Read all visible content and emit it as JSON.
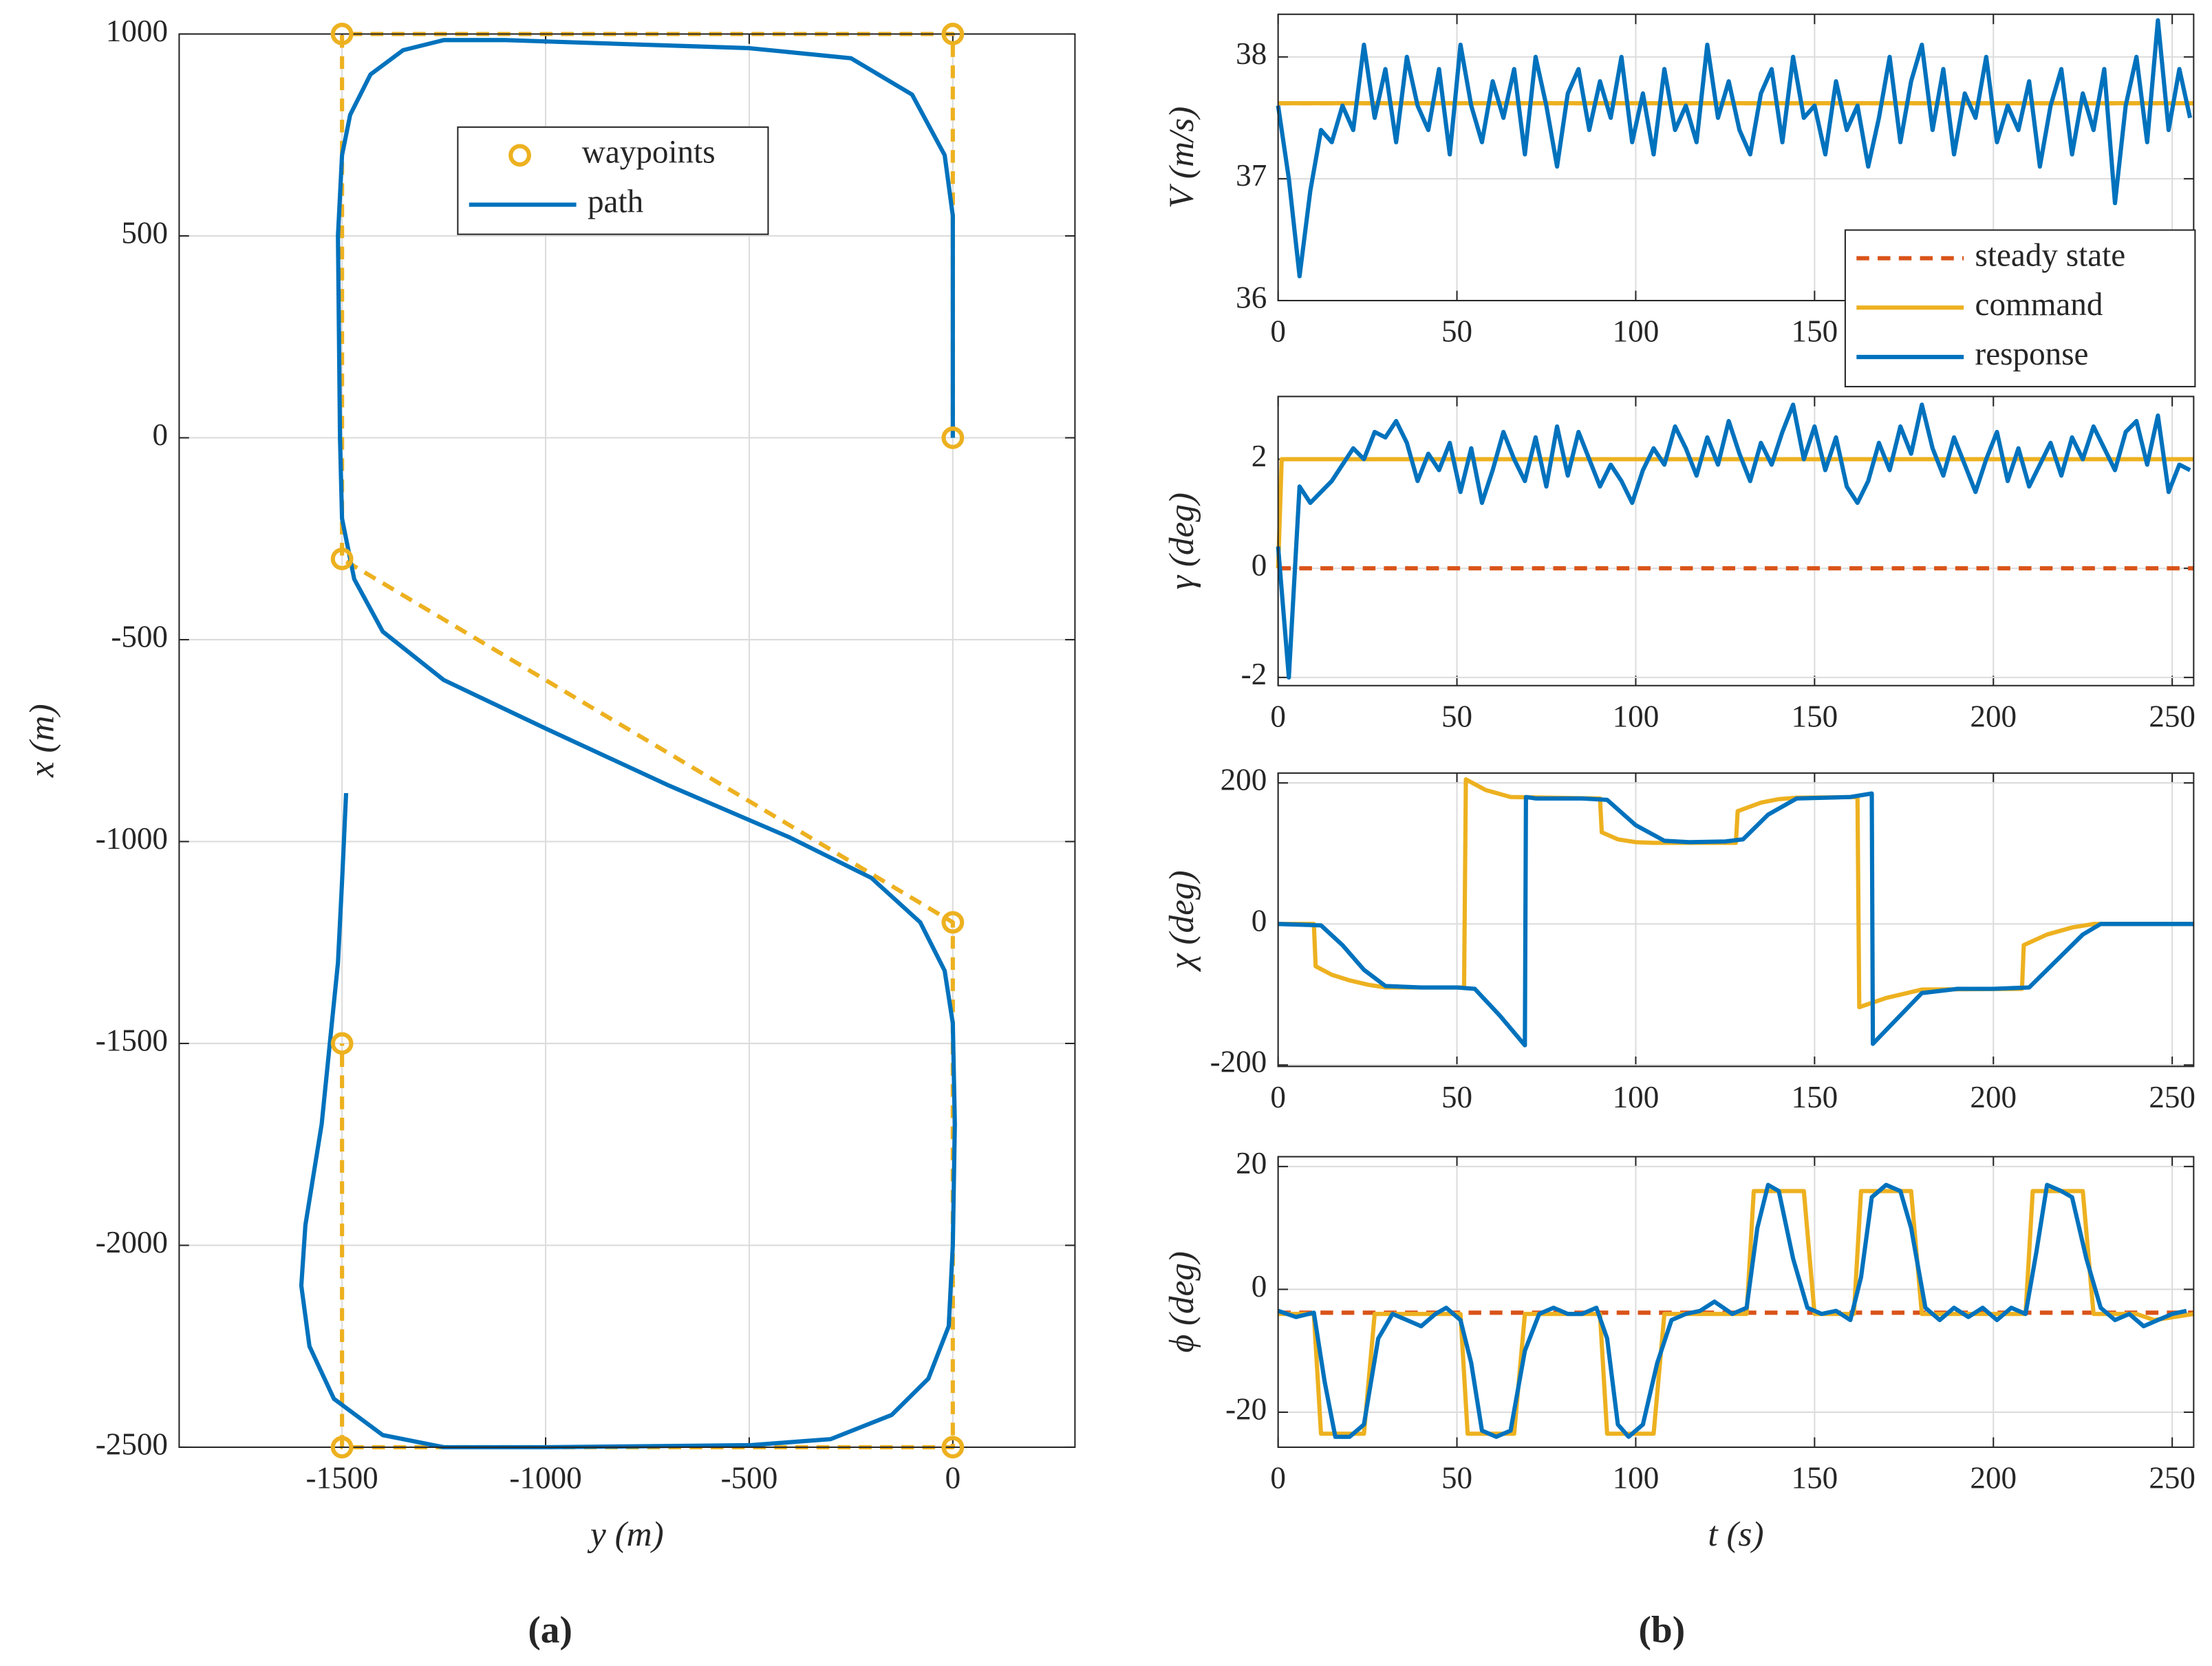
{
  "chart_data": [
    {
      "type": "line",
      "xlabel": "y (m)",
      "ylabel": "x (m)",
      "xlim": [
        -1900,
        300
      ],
      "ylim": [
        -2500,
        1000
      ],
      "xticks": [
        -1500,
        -1000,
        -500,
        0
      ],
      "yticks": [
        -2500,
        -2000,
        -1500,
        -1000,
        -500,
        0,
        500,
        1000
      ],
      "grid": true,
      "legend": "north",
      "series": [
        {
          "name": "waypoints",
          "color": "#EDB120",
          "line": "dashed",
          "marker": "circle",
          "x": [
            0,
            0,
            -1500,
            -1500,
            0,
            0,
            -1500,
            -1500
          ],
          "values": [
            0,
            1000,
            1000,
            -300,
            -1200,
            -2500,
            -2500,
            -1500
          ]
        },
        {
          "name": "path",
          "color": "#0072BD",
          "line": "solid",
          "x": [
            0,
            0,
            0,
            -20,
            -100,
            -250,
            -500,
            -800,
            -1100,
            -1250,
            -1350,
            -1430,
            -1480,
            -1500,
            -1510,
            -1505,
            -1500,
            -1470,
            -1400,
            -1250,
            -1000,
            -700,
            -400,
            -200,
            -80,
            -20,
            0,
            5,
            0,
            -10,
            -60,
            -150,
            -300,
            -500,
            -1000,
            -1250,
            -1400,
            -1520,
            -1580,
            -1600,
            -1590,
            -1550,
            -1510,
            -1500,
            -1490
          ],
          "values": [
            0,
            300,
            550,
            700,
            850,
            940,
            965,
            975,
            985,
            985,
            960,
            900,
            800,
            700,
            500,
            0,
            -200,
            -350,
            -480,
            -600,
            -720,
            -860,
            -990,
            -1090,
            -1200,
            -1320,
            -1450,
            -1700,
            -2000,
            -2200,
            -2330,
            -2420,
            -2480,
            -2495,
            -2500,
            -2500,
            -2470,
            -2380,
            -2250,
            -2100,
            -1950,
            -1700,
            -1300,
            -1100,
            -880
          ]
        }
      ]
    },
    {
      "type": "line",
      "ylabel": "V (m/s)",
      "xlim": [
        0,
        256
      ],
      "ylim": [
        36,
        38.35
      ],
      "xticks": [
        0,
        50,
        100,
        150,
        200,
        250
      ],
      "yticks": [
        36,
        37,
        38
      ],
      "grid": true,
      "legend": "southeast",
      "series": [
        {
          "name": "steady state",
          "color": "#D95319",
          "line": "dashed",
          "x": [
            0,
            256
          ],
          "values": [
            37.62,
            37.62
          ]
        },
        {
          "name": "command",
          "color": "#EDB120",
          "line": "solid",
          "x": [
            0,
            256
          ],
          "values": [
            37.62,
            37.62
          ]
        },
        {
          "name": "response",
          "color": "#0072BD",
          "line": "solid",
          "x": [
            0,
            3,
            6,
            9,
            12,
            15,
            18,
            21,
            24,
            27,
            30,
            33,
            36,
            39,
            42,
            45,
            48,
            51,
            54,
            57,
            60,
            63,
            66,
            69,
            72,
            75,
            78,
            81,
            84,
            87,
            90,
            93,
            96,
            99,
            102,
            105,
            108,
            111,
            114,
            117,
            120,
            123,
            126,
            129,
            132,
            135,
            138,
            141,
            144,
            147,
            150,
            153,
            156,
            159,
            162,
            165,
            168,
            171,
            174,
            177,
            180,
            183,
            186,
            189,
            192,
            195,
            198,
            201,
            204,
            207,
            210,
            213,
            216,
            219,
            222,
            225,
            228,
            231,
            234,
            237,
            240,
            243,
            246,
            249,
            252,
            255
          ],
          "values": [
            37.6,
            37.0,
            36.2,
            36.9,
            37.4,
            37.3,
            37.6,
            37.4,
            38.1,
            37.5,
            37.9,
            37.3,
            38.0,
            37.6,
            37.4,
            37.9,
            37.2,
            38.1,
            37.6,
            37.3,
            37.8,
            37.5,
            37.9,
            37.2,
            38.0,
            37.6,
            37.1,
            37.7,
            37.9,
            37.4,
            37.8,
            37.5,
            38.0,
            37.3,
            37.7,
            37.2,
            37.9,
            37.4,
            37.6,
            37.3,
            38.1,
            37.5,
            37.8,
            37.4,
            37.2,
            37.7,
            37.9,
            37.3,
            38.0,
            37.5,
            37.6,
            37.2,
            37.8,
            37.4,
            37.6,
            37.1,
            37.5,
            38.0,
            37.3,
            37.8,
            38.1,
            37.4,
            37.9,
            37.2,
            37.7,
            37.5,
            38.0,
            37.3,
            37.6,
            37.4,
            37.8,
            37.1,
            37.6,
            37.9,
            37.2,
            37.7,
            37.4,
            37.9,
            36.8,
            37.6,
            38.0,
            37.3,
            38.3,
            37.4,
            37.9,
            37.5
          ]
        }
      ]
    },
    {
      "type": "line",
      "ylabel": "γ (deg)",
      "xlim": [
        0,
        256
      ],
      "ylim": [
        -2.15,
        3.15
      ],
      "xticks": [
        0,
        50,
        100,
        150,
        200,
        250
      ],
      "yticks": [
        -2,
        0,
        2
      ],
      "grid": true,
      "series": [
        {
          "color": "#D95319",
          "line": "dashed",
          "x": [
            0,
            256
          ],
          "values": [
            0,
            0
          ]
        },
        {
          "color": "#EDB120",
          "line": "solid",
          "x": [
            0,
            1,
            256
          ],
          "values": [
            0,
            2,
            2
          ]
        },
        {
          "color": "#0072BD",
          "line": "solid",
          "x": [
            0,
            3,
            6,
            9,
            12,
            15,
            18,
            21,
            24,
            27,
            30,
            33,
            36,
            39,
            42,
            45,
            48,
            51,
            54,
            57,
            60,
            63,
            66,
            69,
            72,
            75,
            78,
            81,
            84,
            87,
            90,
            93,
            96,
            99,
            102,
            105,
            108,
            111,
            114,
            117,
            120,
            123,
            126,
            129,
            132,
            135,
            138,
            141,
            144,
            147,
            150,
            153,
            156,
            159,
            162,
            165,
            168,
            171,
            174,
            177,
            180,
            183,
            186,
            189,
            192,
            195,
            198,
            201,
            204,
            207,
            210,
            213,
            216,
            219,
            222,
            225,
            228,
            231,
            234,
            237,
            240,
            243,
            246,
            249,
            252,
            255
          ],
          "values": [
            0.4,
            -2.0,
            1.5,
            1.2,
            1.4,
            1.6,
            1.9,
            2.2,
            2.0,
            2.5,
            2.4,
            2.7,
            2.3,
            1.6,
            2.1,
            1.8,
            2.3,
            1.4,
            2.2,
            1.2,
            1.8,
            2.5,
            2.0,
            1.6,
            2.4,
            1.5,
            2.6,
            1.7,
            2.5,
            2.0,
            1.5,
            1.9,
            1.6,
            1.2,
            1.8,
            2.2,
            1.9,
            2.6,
            2.2,
            1.7,
            2.4,
            1.9,
            2.7,
            2.1,
            1.6,
            2.3,
            1.9,
            2.5,
            3.0,
            2.0,
            2.6,
            1.8,
            2.4,
            1.5,
            1.2,
            1.6,
            2.3,
            1.8,
            2.6,
            2.1,
            3.0,
            2.2,
            1.7,
            2.4,
            1.9,
            1.4,
            2.0,
            2.5,
            1.6,
            2.2,
            1.5,
            1.9,
            2.3,
            1.7,
            2.4,
            2.0,
            2.6,
            2.2,
            1.8,
            2.5,
            2.7,
            1.9,
            2.8,
            1.4,
            1.9,
            1.8
          ]
        }
      ]
    },
    {
      "type": "line",
      "ylabel": "χ (deg)",
      "xlim": [
        0,
        256
      ],
      "ylim": [
        -202,
        214
      ],
      "xticks": [
        0,
        50,
        100,
        150,
        200,
        250
      ],
      "yticks": [
        -200,
        0,
        200
      ],
      "grid": true,
      "series": [
        {
          "color": "#EDB120",
          "line": "solid",
          "x": [
            0,
            10,
            10.5,
            15,
            20,
            25,
            30,
            52,
            52.5,
            58,
            65,
            90,
            90.5,
            95,
            100,
            105,
            128,
            128.5,
            135,
            140,
            145,
            162,
            162.5,
            170,
            180,
            208,
            208.5,
            215,
            222,
            228,
            256
          ],
          "values": [
            0,
            0,
            -60,
            -72,
            -80,
            -86,
            -90,
            -90,
            205,
            190,
            180,
            178,
            130,
            120,
            116,
            115,
            115,
            160,
            172,
            177,
            179,
            180,
            -118,
            -105,
            -93,
            -92,
            -30,
            -15,
            -5,
            0,
            0
          ]
        },
        {
          "color": "#0072BD",
          "line": "solid",
          "x": [
            0,
            12,
            18,
            24,
            30,
            40,
            50,
            55,
            62,
            69,
            69.3,
            72,
            85,
            92,
            100,
            108,
            115,
            125,
            130,
            137,
            145,
            160,
            166,
            166.3,
            172,
            180,
            190,
            200,
            210,
            218,
            225,
            230,
            256
          ],
          "values": [
            0,
            -2,
            -30,
            -65,
            -88,
            -90,
            -90,
            -92,
            -130,
            -172,
            180,
            178,
            178,
            176,
            140,
            118,
            116,
            117,
            120,
            155,
            178,
            180,
            185,
            -170,
            -140,
            -98,
            -92,
            -92,
            -90,
            -50,
            -15,
            0,
            0
          ]
        }
      ]
    },
    {
      "type": "line",
      "xlabel": "t (s)",
      "ylabel": "ϕ (deg)",
      "xlim": [
        0,
        256
      ],
      "ylim": [
        -25.7,
        21.6
      ],
      "xticks": [
        0,
        50,
        100,
        150,
        200,
        250
      ],
      "yticks": [
        -20,
        0,
        20
      ],
      "grid": true,
      "series": [
        {
          "color": "#D95319",
          "line": "dashed",
          "x": [
            0,
            256
          ],
          "values": [
            -3.8,
            -3.8
          ]
        },
        {
          "color": "#EDB120",
          "line": "solid",
          "x": [
            0,
            10,
            12,
            24,
            27,
            51,
            53,
            66,
            69,
            90,
            92,
            105,
            108,
            131,
            133,
            147,
            150,
            161,
            163,
            177,
            180,
            209,
            211,
            225,
            228,
            240,
            245,
            256
          ],
          "values": [
            -4,
            -4,
            -23.5,
            -23.5,
            -4,
            -4,
            -23.5,
            -23.5,
            -4,
            -4,
            -23.5,
            -23.5,
            -4,
            -4,
            16,
            16,
            -4,
            -4,
            16,
            16,
            -4,
            -4,
            16,
            16,
            -4,
            -4,
            -5,
            -4
          ]
        },
        {
          "color": "#0072BD",
          "line": "solid",
          "x": [
            0,
            5,
            10,
            13,
            16,
            20,
            24,
            28,
            32,
            36,
            40,
            44,
            47,
            51,
            54,
            57,
            61,
            65,
            69,
            73,
            77,
            81,
            85,
            89,
            92,
            95,
            98,
            102,
            106,
            110,
            114,
            118,
            122,
            127,
            131,
            134,
            137,
            140,
            144,
            148,
            152,
            156,
            160,
            163,
            166,
            170,
            174,
            177,
            181,
            185,
            189,
            193,
            197,
            201,
            205,
            209,
            212,
            215,
            219,
            222,
            226,
            230,
            234,
            238,
            242,
            246,
            250,
            254
          ],
          "values": [
            -3.5,
            -4.5,
            -3.8,
            -15,
            -24,
            -24,
            -22,
            -8,
            -4,
            -5,
            -6,
            -4,
            -3,
            -5,
            -12,
            -23,
            -24,
            -23,
            -10,
            -4,
            -3,
            -4,
            -4,
            -3,
            -8,
            -22,
            -24,
            -22,
            -12,
            -5,
            -4,
            -3.5,
            -2,
            -4,
            -3,
            10,
            17,
            16,
            5,
            -3,
            -4,
            -3.5,
            -5,
            2,
            15,
            17,
            16,
            10,
            -3,
            -5,
            -3,
            -4.5,
            -3,
            -5,
            -3,
            -4,
            6,
            17,
            16,
            15,
            5,
            -3,
            -5,
            -4,
            -6,
            -5,
            -4,
            -3.5
          ]
        }
      ]
    }
  ],
  "captions": [
    "(a)",
    "(b)"
  ]
}
